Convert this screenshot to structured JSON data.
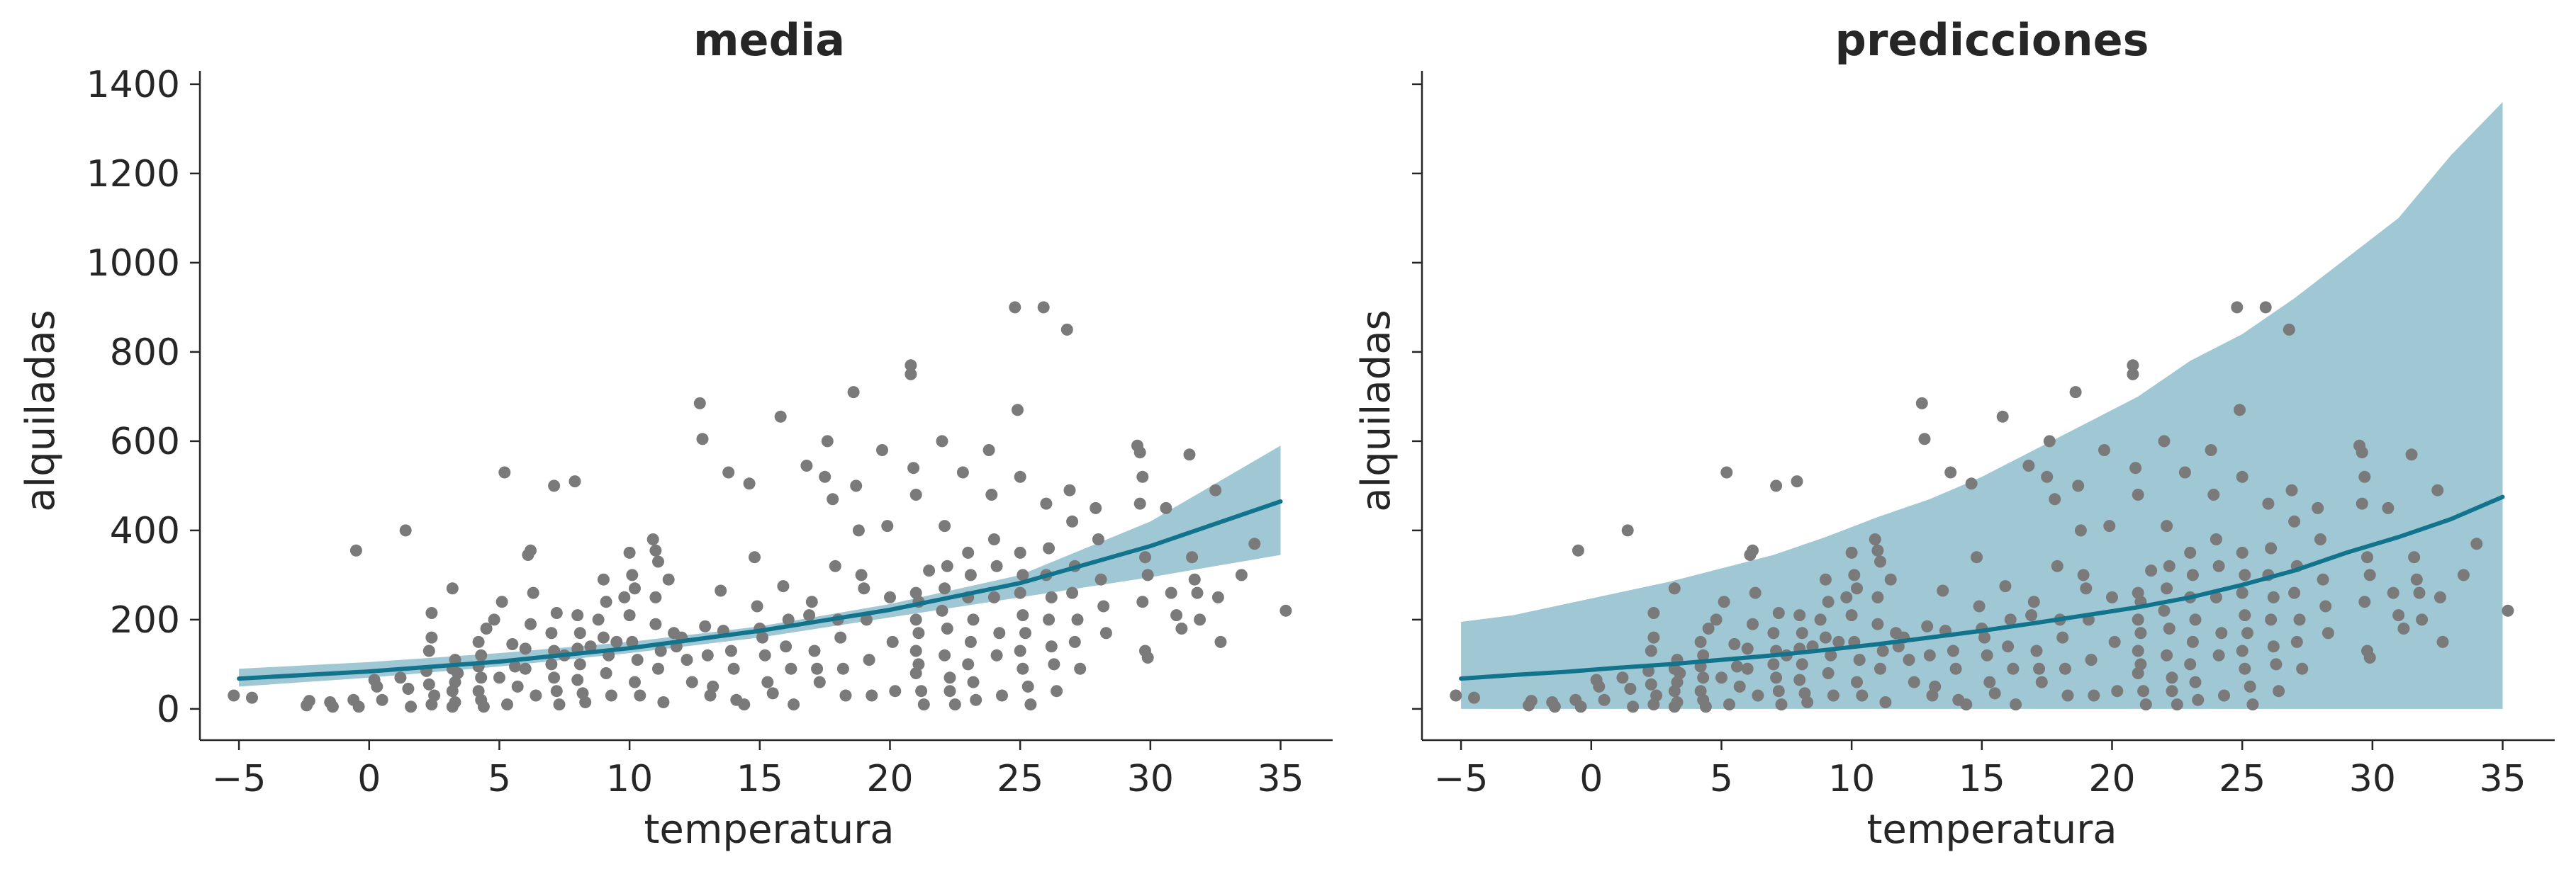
{
  "colors": {
    "band": "#9fc7d4",
    "line": "#12738c",
    "points": "#7a7a7a",
    "axis": "#262626"
  },
  "chart_data": [
    {
      "type": "scatter",
      "title": "media",
      "xlabel": "temperatura",
      "ylabel": "alquiladas",
      "xlim": [
        -6.5,
        37
      ],
      "ylim": [
        -70,
        1430
      ],
      "xticks": [
        -5,
        0,
        5,
        10,
        15,
        20,
        25,
        30,
        35
      ],
      "yticks": [
        0,
        200,
        400,
        600,
        800,
        1000,
        1200,
        1400
      ],
      "show_ytick_labels": true,
      "grid": false,
      "band": {
        "x": [
          -5,
          0,
          5,
          10,
          15,
          20,
          25,
          30,
          35
        ],
        "lower": [
          50,
          70,
          95,
          125,
          160,
          205,
          250,
          295,
          345
        ],
        "upper": [
          90,
          105,
          125,
          150,
          185,
          235,
          300,
          420,
          590
        ]
      },
      "line": {
        "x": [
          -5,
          0,
          5,
          10,
          15,
          20,
          25,
          30,
          35
        ],
        "y": [
          68,
          84,
          106,
          136,
          175,
          222,
          282,
          365,
          465
        ]
      }
    },
    {
      "type": "scatter",
      "title": "predicciones",
      "xlabel": "temperatura",
      "ylabel": "alquiladas",
      "xlim": [
        -6.5,
        37
      ],
      "ylim": [
        -70,
        1430
      ],
      "xticks": [
        -5,
        0,
        5,
        10,
        15,
        20,
        25,
        30,
        35
      ],
      "yticks": [
        0,
        200,
        400,
        600,
        800,
        1000,
        1200,
        1400
      ],
      "show_ytick_labels": false,
      "grid": false,
      "band": {
        "x": [
          -5,
          -3,
          -1,
          1,
          3,
          5,
          7,
          9,
          11,
          13,
          15,
          17,
          19,
          21,
          23,
          25,
          27,
          29,
          31,
          33,
          35
        ],
        "lower": [
          0,
          0,
          0,
          0,
          0,
          0,
          0,
          0,
          0,
          0,
          0,
          0,
          0,
          0,
          0,
          0,
          0,
          0,
          0,
          0,
          0
        ],
        "upper": [
          195,
          210,
          235,
          260,
          285,
          315,
          345,
          385,
          430,
          470,
          520,
          580,
          640,
          700,
          780,
          840,
          920,
          1010,
          1100,
          1240,
          1360
        ]
      },
      "line": {
        "x": [
          -5,
          -3,
          -1,
          1,
          3,
          5,
          7,
          9,
          11,
          13,
          15,
          17,
          19,
          21,
          23,
          25,
          27,
          29,
          31,
          33,
          35
        ],
        "y": [
          68,
          76,
          83,
          92,
          100,
          110,
          120,
          132,
          145,
          160,
          175,
          192,
          210,
          228,
          250,
          278,
          310,
          350,
          385,
          425,
          475
        ]
      }
    }
  ],
  "points": [
    [
      -5.2,
      30
    ],
    [
      -4.5,
      25
    ],
    [
      -2.4,
      8
    ],
    [
      -2.3,
      18
    ],
    [
      -1.5,
      15
    ],
    [
      -1.4,
      5
    ],
    [
      -0.5,
      355
    ],
    [
      -0.6,
      20
    ],
    [
      -0.4,
      5
    ],
    [
      0.2,
      65
    ],
    [
      0.3,
      50
    ],
    [
      0.5,
      20
    ],
    [
      1.2,
      70
    ],
    [
      1.4,
      400
    ],
    [
      1.5,
      45
    ],
    [
      1.6,
      5
    ],
    [
      2.2,
      85
    ],
    [
      2.3,
      55
    ],
    [
      2.4,
      10
    ],
    [
      2.5,
      30
    ],
    [
      2.3,
      130
    ],
    [
      2.4,
      160
    ],
    [
      2.4,
      215
    ],
    [
      3.2,
      270
    ],
    [
      3.2,
      90
    ],
    [
      3.3,
      60
    ],
    [
      3.2,
      40
    ],
    [
      3.3,
      15
    ],
    [
      3.2,
      5
    ],
    [
      3.3,
      110
    ],
    [
      3.4,
      80
    ],
    [
      4.2,
      150
    ],
    [
      4.3,
      120
    ],
    [
      4.2,
      95
    ],
    [
      4.3,
      70
    ],
    [
      4.2,
      40
    ],
    [
      4.3,
      20
    ],
    [
      4.4,
      5
    ],
    [
      4.5,
      180
    ],
    [
      4.8,
      200
    ],
    [
      5.0,
      70
    ],
    [
      5.2,
      530
    ],
    [
      5.3,
      10
    ],
    [
      5.1,
      240
    ],
    [
      5.5,
      145
    ],
    [
      5.6,
      95
    ],
    [
      5.7,
      50
    ],
    [
      6.0,
      135
    ],
    [
      6.0,
      90
    ],
    [
      6.1,
      345
    ],
    [
      6.2,
      355
    ],
    [
      6.3,
      260
    ],
    [
      6.2,
      190
    ],
    [
      6.4,
      30
    ],
    [
      7.0,
      170
    ],
    [
      7.1,
      130
    ],
    [
      7.0,
      100
    ],
    [
      7.1,
      70
    ],
    [
      7.2,
      40
    ],
    [
      7.3,
      10
    ],
    [
      7.1,
      500
    ],
    [
      7.2,
      215
    ],
    [
      7.5,
      120
    ],
    [
      7.9,
      510
    ],
    [
      8.0,
      210
    ],
    [
      8.1,
      170
    ],
    [
      8.0,
      135
    ],
    [
      8.1,
      100
    ],
    [
      8.0,
      65
    ],
    [
      8.2,
      35
    ],
    [
      8.3,
      15
    ],
    [
      8.5,
      140
    ],
    [
      8.8,
      200
    ],
    [
      9.0,
      290
    ],
    [
      9.1,
      240
    ],
    [
      9.0,
      160
    ],
    [
      9.2,
      120
    ],
    [
      9.1,
      80
    ],
    [
      9.3,
      30
    ],
    [
      9.5,
      150
    ],
    [
      9.8,
      250
    ],
    [
      10.1,
      300
    ],
    [
      10.0,
      350
    ],
    [
      10.2,
      270
    ],
    [
      10.0,
      210
    ],
    [
      10.1,
      150
    ],
    [
      10.3,
      110
    ],
    [
      10.2,
      60
    ],
    [
      10.4,
      30
    ],
    [
      10.9,
      380
    ],
    [
      11.0,
      355
    ],
    [
      11.1,
      330
    ],
    [
      11.0,
      250
    ],
    [
      11.0,
      190
    ],
    [
      11.2,
      130
    ],
    [
      11.1,
      90
    ],
    [
      11.3,
      15
    ],
    [
      11.5,
      290
    ],
    [
      11.7,
      170
    ],
    [
      11.8,
      140
    ],
    [
      12.0,
      160
    ],
    [
      12.2,
      110
    ],
    [
      12.4,
      60
    ],
    [
      12.7,
      685
    ],
    [
      12.8,
      605
    ],
    [
      12.9,
      185
    ],
    [
      13.0,
      120
    ],
    [
      13.1,
      30
    ],
    [
      13.2,
      50
    ],
    [
      13.5,
      265
    ],
    [
      13.8,
      530
    ],
    [
      13.6,
      175
    ],
    [
      13.9,
      130
    ],
    [
      14.0,
      90
    ],
    [
      14.1,
      20
    ],
    [
      14.4,
      10
    ],
    [
      14.6,
      505
    ],
    [
      14.8,
      340
    ],
    [
      14.9,
      230
    ],
    [
      15.0,
      180
    ],
    [
      15.1,
      160
    ],
    [
      15.2,
      120
    ],
    [
      15.3,
      60
    ],
    [
      15.5,
      35
    ],
    [
      15.8,
      655
    ],
    [
      15.9,
      275
    ],
    [
      16.1,
      200
    ],
    [
      16.0,
      140
    ],
    [
      16.2,
      90
    ],
    [
      16.3,
      10
    ],
    [
      16.8,
      545
    ],
    [
      16.9,
      210
    ],
    [
      17.0,
      240
    ],
    [
      17.1,
      130
    ],
    [
      17.2,
      90
    ],
    [
      17.3,
      60
    ],
    [
      17.6,
      600
    ],
    [
      17.5,
      520
    ],
    [
      17.8,
      470
    ],
    [
      17.9,
      320
    ],
    [
      18.0,
      200
    ],
    [
      18.1,
      160
    ],
    [
      18.2,
      90
    ],
    [
      18.3,
      30
    ],
    [
      18.6,
      710
    ],
    [
      18.7,
      500
    ],
    [
      18.8,
      400
    ],
    [
      18.9,
      300
    ],
    [
      19.0,
      270
    ],
    [
      19.1,
      200
    ],
    [
      19.2,
      110
    ],
    [
      19.3,
      30
    ],
    [
      19.7,
      580
    ],
    [
      19.9,
      410
    ],
    [
      20.0,
      250
    ],
    [
      20.1,
      150
    ],
    [
      20.2,
      40
    ],
    [
      20.8,
      770
    ],
    [
      20.8,
      750
    ],
    [
      20.9,
      540
    ],
    [
      21.0,
      480
    ],
    [
      21.0,
      260
    ],
    [
      21.1,
      240
    ],
    [
      21.0,
      200
    ],
    [
      21.1,
      170
    ],
    [
      21.0,
      130
    ],
    [
      21.1,
      100
    ],
    [
      21.0,
      80
    ],
    [
      21.2,
      40
    ],
    [
      21.3,
      10
    ],
    [
      21.5,
      310
    ],
    [
      22.0,
      600
    ],
    [
      22.1,
      410
    ],
    [
      22.2,
      320
    ],
    [
      22.1,
      270
    ],
    [
      22.0,
      220
    ],
    [
      22.2,
      180
    ],
    [
      22.1,
      120
    ],
    [
      22.3,
      70
    ],
    [
      22.3,
      40
    ],
    [
      22.5,
      10
    ],
    [
      22.8,
      530
    ],
    [
      23.0,
      350
    ],
    [
      23.1,
      300
    ],
    [
      23.0,
      250
    ],
    [
      23.2,
      200
    ],
    [
      23.1,
      150
    ],
    [
      23.0,
      100
    ],
    [
      23.2,
      60
    ],
    [
      23.3,
      20
    ],
    [
      23.8,
      580
    ],
    [
      23.9,
      480
    ],
    [
      24.0,
      380
    ],
    [
      24.1,
      320
    ],
    [
      24.0,
      250
    ],
    [
      24.2,
      170
    ],
    [
      24.1,
      120
    ],
    [
      24.3,
      30
    ],
    [
      24.8,
      900
    ],
    [
      24.9,
      670
    ],
    [
      25.0,
      520
    ],
    [
      25.0,
      350
    ],
    [
      25.1,
      300
    ],
    [
      25.0,
      260
    ],
    [
      25.1,
      210
    ],
    [
      25.2,
      170
    ],
    [
      25.0,
      130
    ],
    [
      25.1,
      90
    ],
    [
      25.3,
      50
    ],
    [
      25.4,
      10
    ],
    [
      25.9,
      900
    ],
    [
      26.0,
      460
    ],
    [
      26.1,
      360
    ],
    [
      26.0,
      300
    ],
    [
      26.2,
      250
    ],
    [
      26.1,
      200
    ],
    [
      26.2,
      140
    ],
    [
      26.3,
      100
    ],
    [
      26.4,
      40
    ],
    [
      26.8,
      850
    ],
    [
      26.9,
      490
    ],
    [
      27.0,
      420
    ],
    [
      27.1,
      320
    ],
    [
      27.0,
      260
    ],
    [
      27.2,
      200
    ],
    [
      27.1,
      150
    ],
    [
      27.3,
      90
    ],
    [
      27.9,
      450
    ],
    [
      28.0,
      380
    ],
    [
      28.1,
      290
    ],
    [
      28.2,
      230
    ],
    [
      28.3,
      170
    ],
    [
      29.5,
      590
    ],
    [
      29.6,
      575
    ],
    [
      29.7,
      520
    ],
    [
      29.6,
      460
    ],
    [
      29.8,
      340
    ],
    [
      29.9,
      300
    ],
    [
      29.7,
      240
    ],
    [
      29.8,
      130
    ],
    [
      29.9,
      115
    ],
    [
      30.6,
      450
    ],
    [
      30.8,
      260
    ],
    [
      31.0,
      210
    ],
    [
      31.2,
      180
    ],
    [
      31.5,
      570
    ],
    [
      31.6,
      340
    ],
    [
      31.7,
      290
    ],
    [
      31.8,
      260
    ],
    [
      31.9,
      200
    ],
    [
      32.5,
      490
    ],
    [
      32.6,
      250
    ],
    [
      32.7,
      150
    ],
    [
      33.5,
      300
    ],
    [
      34.0,
      370
    ],
    [
      35.2,
      220
    ]
  ]
}
